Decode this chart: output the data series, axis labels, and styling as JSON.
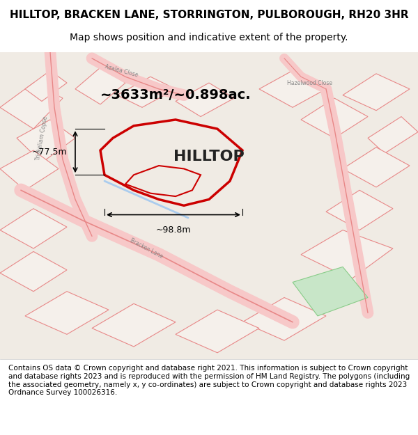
{
  "title": "HILLTOP, BRACKEN LANE, STORRINGTON, PULBOROUGH, RH20 3HR",
  "subtitle": "Map shows position and indicative extent of the property.",
  "footer": "Contains OS data © Crown copyright and database right 2021. This information is subject to Crown copyright and database rights 2023 and is reproduced with the permission of HM Land Registry. The polygons (including the associated geometry, namely x, y co-ordinates) are subject to Crown copyright and database rights 2023 Ordnance Survey 100026316.",
  "area_text": "~3633m²/~0.898ac.",
  "property_name": "HILLTOP",
  "dim_width": "~98.8m",
  "dim_height": "~77.5m",
  "bg_color": "#f5f0eb",
  "map_bg": "#f5f0eb",
  "road_color": "#f7c8c8",
  "road_outline": "#e88888",
  "plot_fill": "none",
  "plot_outline": "#dd0000",
  "green_area": "#c8e6c8",
  "title_fontsize": 11,
  "subtitle_fontsize": 10,
  "footer_fontsize": 7.5
}
